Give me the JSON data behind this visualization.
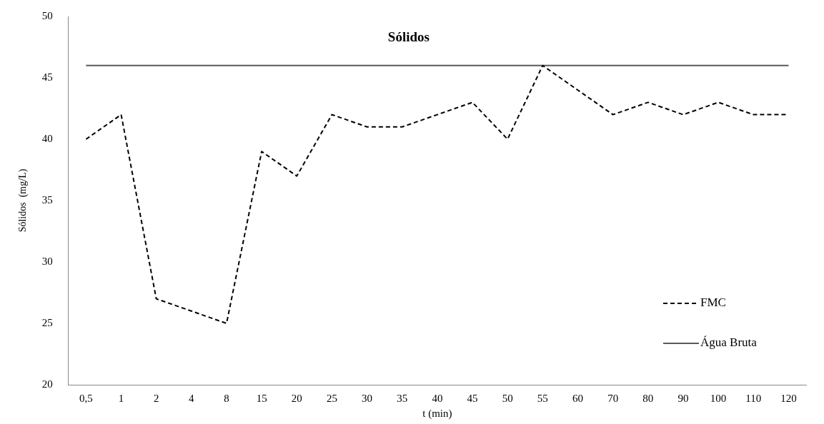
{
  "chart_data": {
    "type": "line",
    "title": "Sólidos",
    "xlabel": "t (min)",
    "ylabel": "Sólidos  (mg/L)",
    "categories": [
      "0,5",
      "1",
      "2",
      "4",
      "8",
      "15",
      "20",
      "25",
      "30",
      "35",
      "40",
      "45",
      "50",
      "55",
      "60",
      "70",
      "80",
      "90",
      "100",
      "110",
      "120"
    ],
    "series": [
      {
        "name": "FMC",
        "color": "#000000",
        "line_style": "dashed",
        "values": [
          40,
          42,
          27,
          26,
          25,
          39,
          37,
          42,
          41,
          41,
          42,
          43,
          40,
          46,
          44,
          42,
          43,
          42,
          43,
          42,
          42
        ]
      },
      {
        "name": "Água Bruta",
        "color": "#595959",
        "line_style": "solid",
        "values": [
          46,
          46,
          46,
          46,
          46,
          46,
          46,
          46,
          46,
          46,
          46,
          46,
          46,
          46,
          46,
          46,
          46,
          46,
          46,
          46,
          46
        ]
      }
    ],
    "ylim": [
      20,
      50
    ],
    "yticks": [
      20,
      25,
      30,
      35,
      40,
      45,
      50
    ],
    "grid": false,
    "legend": "right",
    "marker": "none"
  }
}
